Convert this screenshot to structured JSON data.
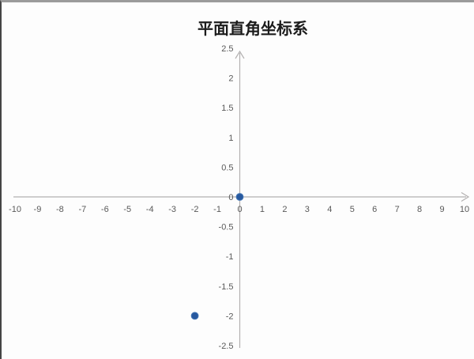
{
  "title": "平面直角坐标系",
  "chart_data": {
    "type": "scatter",
    "title": "平面直角坐标系",
    "points": [
      {
        "x": 0,
        "y": 0
      },
      {
        "x": -2,
        "y": -2
      }
    ],
    "xlim": [
      -10,
      10
    ],
    "ylim": [
      -2.5,
      2.5
    ],
    "x_ticks": [
      -10,
      -9,
      -8,
      -7,
      -6,
      -5,
      -4,
      -3,
      -2,
      -1,
      0,
      1,
      2,
      3,
      4,
      5,
      6,
      7,
      8,
      9,
      10
    ],
    "x_tick_labels": [
      "-10",
      "-9",
      "-8",
      "-7",
      "-6",
      "-5",
      "-4",
      "-3",
      "-2",
      "-1",
      "0",
      "1",
      "2",
      "3",
      "4",
      "5",
      "6",
      "7",
      "8",
      "9",
      "10"
    ],
    "y_ticks": [
      2.5,
      2,
      1.5,
      1,
      0.5,
      0,
      -0.5,
      -1,
      -1.5,
      -2,
      -2.5
    ],
    "y_tick_labels": [
      "2.5",
      "2",
      "1.5",
      "1",
      "0.5",
      "0",
      "-0.5",
      "-1",
      "-1.5",
      "-2",
      "-2.5"
    ],
    "grid": false,
    "legend": null,
    "axes_cross_at": {
      "x": 0,
      "y": 0
    },
    "colors": {
      "point": "#27599f",
      "point_edge": "#4577b5",
      "axis": "#b3b1b1",
      "tick_text": "#595959",
      "title_text": "#1c1c1c"
    }
  }
}
